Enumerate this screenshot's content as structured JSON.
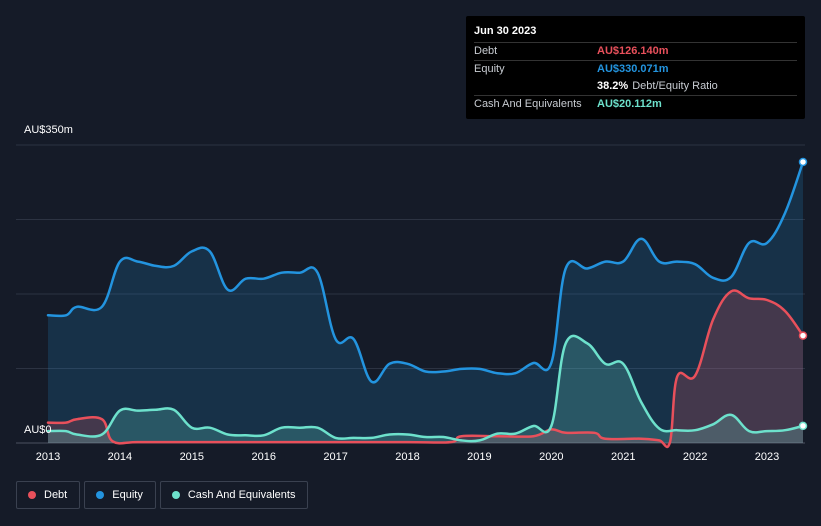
{
  "tooltip": {
    "date": "Jun 30 2023",
    "debt_label": "Debt",
    "debt_value": "AU$126.140m",
    "equity_label": "Equity",
    "equity_value": "AU$330.071m",
    "ratio_value": "38.2%",
    "ratio_label": "Debt/Equity Ratio",
    "cash_label": "Cash And Equivalents",
    "cash_value": "AU$20.112m"
  },
  "colors": {
    "debt": "#e8505b",
    "equity": "#2394df",
    "cash": "#6de1cc",
    "background": "#151b28"
  },
  "legend": [
    {
      "label": "Debt",
      "color": "#e8505b"
    },
    {
      "label": "Equity",
      "color": "#2394df"
    },
    {
      "label": "Cash And Equivalents",
      "color": "#6de1cc"
    }
  ],
  "chart_data": {
    "type": "area",
    "y_top_label": "AU$350m",
    "y_bottom_label": "AU$0",
    "ylim": [
      0,
      350
    ],
    "xlim": [
      2013.0,
      2023.5
    ],
    "x_ticks": [
      "2013",
      "2014",
      "2015",
      "2016",
      "2017",
      "2018",
      "2019",
      "2020",
      "2021",
      "2022",
      "2023"
    ],
    "grid": true,
    "legend_position": "bottom-left",
    "series": [
      {
        "name": "Debt",
        "x": [
          2013.0,
          2013.25,
          2013.4,
          2013.75,
          2013.9,
          2014.25,
          2015.0,
          2016.0,
          2017.0,
          2018.0,
          2018.6,
          2018.75,
          2019.25,
          2019.75,
          2020.0,
          2020.2,
          2020.6,
          2020.75,
          2021.25,
          2021.5,
          2021.65,
          2021.75,
          2022.0,
          2022.25,
          2022.5,
          2022.75,
          2023.0,
          2023.25,
          2023.5
        ],
        "values": [
          24,
          24,
          28,
          28,
          2,
          1,
          1,
          1,
          1,
          1,
          1,
          8,
          8,
          8,
          16,
          12,
          12,
          5,
          5,
          3,
          1,
          78,
          79,
          145,
          178,
          170,
          168,
          155,
          126.14
        ]
      },
      {
        "name": "Equity",
        "x": [
          2013.0,
          2013.25,
          2013.4,
          2013.75,
          2014.0,
          2014.25,
          2014.5,
          2014.75,
          2015.0,
          2015.25,
          2015.5,
          2015.75,
          2016.0,
          2016.25,
          2016.5,
          2016.75,
          2017.0,
          2017.25,
          2017.5,
          2017.75,
          2018.0,
          2018.25,
          2018.5,
          2018.75,
          2019.0,
          2019.25,
          2019.5,
          2019.75,
          2020.0,
          2020.2,
          2020.5,
          2020.75,
          2021.0,
          2021.25,
          2021.5,
          2021.75,
          2022.0,
          2022.25,
          2022.5,
          2022.75,
          2023.0,
          2023.25,
          2023.5
        ],
        "values": [
          150,
          150,
          160,
          160,
          213,
          213,
          208,
          208,
          225,
          225,
          180,
          193,
          193,
          200,
          200,
          200,
          122,
          122,
          72,
          93,
          93,
          84,
          84,
          87,
          87,
          82,
          82,
          94,
          94,
          205,
          205,
          213,
          213,
          240,
          213,
          213,
          210,
          194,
          195,
          235,
          235,
          270,
          330.07
        ]
      },
      {
        "name": "Cash And Equivalents",
        "x": [
          2013.0,
          2013.25,
          2013.4,
          2013.75,
          2014.0,
          2014.25,
          2014.5,
          2014.75,
          2015.0,
          2015.25,
          2015.5,
          2015.75,
          2016.0,
          2016.25,
          2016.5,
          2016.75,
          2017.0,
          2017.25,
          2017.5,
          2017.75,
          2018.0,
          2018.25,
          2018.5,
          2018.75,
          2019.0,
          2019.25,
          2019.5,
          2019.75,
          2020.0,
          2020.2,
          2020.5,
          2020.75,
          2021.0,
          2021.25,
          2021.5,
          2021.75,
          2022.0,
          2022.25,
          2022.5,
          2022.75,
          2023.0,
          2023.25,
          2023.5
        ],
        "values": [
          14,
          14,
          10,
          10,
          38,
          38,
          39,
          39,
          18,
          18,
          10,
          9,
          9,
          18,
          18,
          18,
          6,
          6,
          6,
          10,
          10,
          7,
          7,
          3,
          3,
          11,
          11,
          20,
          20,
          117,
          117,
          93,
          93,
          48,
          17,
          15,
          15,
          22,
          33,
          14,
          14,
          15,
          20.11
        ]
      }
    ]
  }
}
